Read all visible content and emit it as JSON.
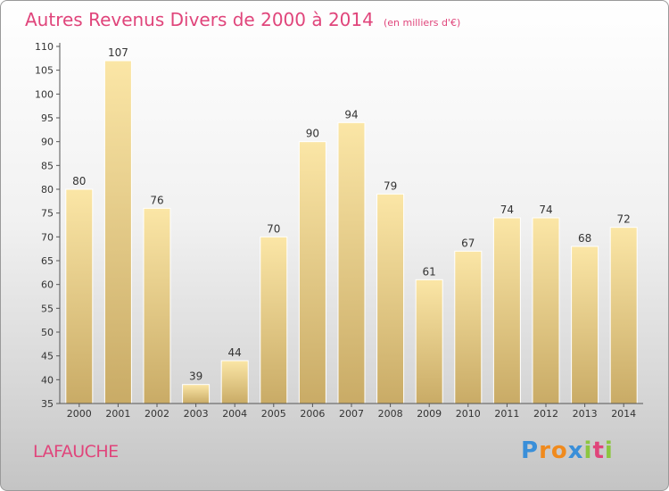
{
  "header": {
    "title": "Autres Revenus Divers de 2000 à 2014",
    "subtitle": "(en milliers d'€)"
  },
  "commune": "LAFAUCHE",
  "logo": {
    "letters": [
      "P",
      "r",
      "o",
      "x",
      "i",
      "t",
      "i"
    ],
    "colors": [
      "#3a8fd9",
      "#f08a1d",
      "#f08a1d",
      "#3a8fd9",
      "#8cc63f",
      "#e0457b",
      "#8cc63f"
    ]
  },
  "colors": {
    "bar_light": "#fbe6a6",
    "bar_dark": "#c9ab66",
    "text": "#333333",
    "accent": "#e0457b"
  },
  "chart_data": {
    "type": "bar",
    "categories": [
      "2000",
      "2001",
      "2002",
      "2003",
      "2004",
      "2005",
      "2006",
      "2007",
      "2008",
      "2009",
      "2010",
      "2011",
      "2012",
      "2013",
      "2014"
    ],
    "values": [
      80,
      107,
      76,
      39,
      44,
      70,
      90,
      94,
      79,
      61,
      67,
      74,
      74,
      68,
      72
    ],
    "title": "Autres Revenus Divers de 2000 à 2014",
    "ylim": [
      35,
      110
    ],
    "yticks": [
      35,
      40,
      45,
      50,
      55,
      60,
      65,
      70,
      75,
      80,
      85,
      90,
      95,
      100,
      105,
      110
    ],
    "grid": false,
    "data_labels": true
  }
}
